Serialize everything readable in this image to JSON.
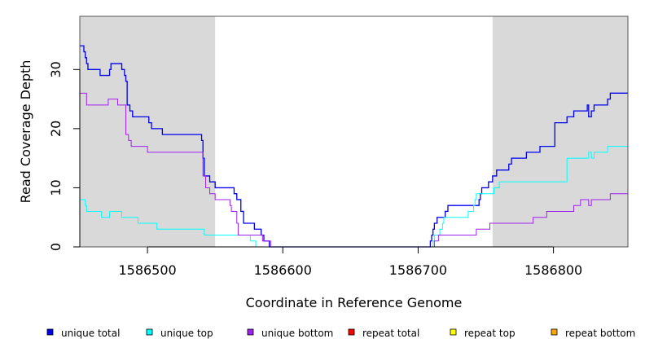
{
  "chart_data": {
    "type": "line",
    "xlabel": "Coordinate in Reference Genome",
    "ylabel": "Read Coverage Depth",
    "xlim": [
      1586450,
      1586855
    ],
    "ylim": [
      0,
      39
    ],
    "x_ticks": [
      1586500,
      1586600,
      1586700,
      1586800
    ],
    "x_tick_labels": [
      "1586500",
      "1586600",
      "1586700",
      "1586800"
    ],
    "y_ticks": [
      0,
      10,
      20,
      30
    ],
    "y_tick_labels": [
      "0",
      "10",
      "20",
      "30"
    ],
    "shaded_regions": [
      [
        1586450,
        1586550
      ],
      [
        1586755,
        1586855
      ]
    ],
    "shaded_color": "#d9d9d9",
    "grid": false,
    "legend_position": "bottom",
    "series": [
      {
        "name": "unique total",
        "color": "#0000ee",
        "points": [
          [
            1586450,
            34
          ],
          [
            1586453,
            33
          ],
          [
            1586454,
            32
          ],
          [
            1586455,
            31
          ],
          [
            1586456,
            30
          ],
          [
            1586465,
            29
          ],
          [
            1586472,
            30
          ],
          [
            1586473,
            31
          ],
          [
            1586478,
            31
          ],
          [
            1586481,
            30
          ],
          [
            1586483,
            29
          ],
          [
            1586484,
            28
          ],
          [
            1586485,
            24
          ],
          [
            1586487,
            23
          ],
          [
            1586489,
            22
          ],
          [
            1586501,
            21
          ],
          [
            1586503,
            20
          ],
          [
            1586511,
            19
          ],
          [
            1586539,
            19
          ],
          [
            1586540,
            18
          ],
          [
            1586541,
            15
          ],
          [
            1586542,
            12
          ],
          [
            1586546,
            11
          ],
          [
            1586550,
            10
          ],
          [
            1586564,
            9
          ],
          [
            1586566,
            8
          ],
          [
            1586569,
            6
          ],
          [
            1586571,
            4
          ],
          [
            1586579,
            3
          ],
          [
            1586584,
            2
          ],
          [
            1586586,
            1
          ],
          [
            1586590,
            0
          ],
          [
            1586708,
            0
          ],
          [
            1586709,
            1
          ],
          [
            1586710,
            2
          ],
          [
            1586711,
            3
          ],
          [
            1586712,
            4
          ],
          [
            1586714,
            5
          ],
          [
            1586720,
            6
          ],
          [
            1586722,
            7
          ],
          [
            1586740,
            7
          ],
          [
            1586745,
            8
          ],
          [
            1586746,
            9
          ],
          [
            1586747,
            10
          ],
          [
            1586752,
            11
          ],
          [
            1586755,
            12
          ],
          [
            1586758,
            13
          ],
          [
            1586767,
            14
          ],
          [
            1586769,
            15
          ],
          [
            1586780,
            16
          ],
          [
            1586790,
            17
          ],
          [
            1586801,
            21
          ],
          [
            1586810,
            22
          ],
          [
            1586815,
            23
          ],
          [
            1586825,
            24
          ],
          [
            1586826,
            22
          ],
          [
            1586828,
            23
          ],
          [
            1586830,
            24
          ],
          [
            1586840,
            25
          ],
          [
            1586842,
            26
          ],
          [
            1586855,
            26
          ]
        ]
      },
      {
        "name": "unique top",
        "color": "#00ffff",
        "points": [
          [
            1586450,
            8
          ],
          [
            1586454,
            7
          ],
          [
            1586455,
            6
          ],
          [
            1586466,
            5
          ],
          [
            1586472,
            6
          ],
          [
            1586481,
            5
          ],
          [
            1586491,
            5
          ],
          [
            1586493,
            4
          ],
          [
            1586507,
            3
          ],
          [
            1586541,
            3
          ],
          [
            1586542,
            2
          ],
          [
            1586569,
            2
          ],
          [
            1586576,
            1
          ],
          [
            1586580,
            0
          ],
          [
            1586709,
            0
          ],
          [
            1586711,
            1
          ],
          [
            1586712,
            2
          ],
          [
            1586716,
            3
          ],
          [
            1586718,
            4
          ],
          [
            1586719,
            5
          ],
          [
            1586737,
            6
          ],
          [
            1586741,
            7
          ],
          [
            1586742,
            8
          ],
          [
            1586743,
            9
          ],
          [
            1586756,
            10
          ],
          [
            1586760,
            11
          ],
          [
            1586770,
            11
          ],
          [
            1586810,
            15
          ],
          [
            1586826,
            16
          ],
          [
            1586828,
            15
          ],
          [
            1586830,
            16
          ],
          [
            1586840,
            17
          ],
          [
            1586855,
            17
          ]
        ]
      },
      {
        "name": "unique bottom",
        "color": "#a020f0",
        "points": [
          [
            1586450,
            26
          ],
          [
            1586455,
            24
          ],
          [
            1586471,
            25
          ],
          [
            1586478,
            24
          ],
          [
            1586483,
            24
          ],
          [
            1586484,
            19
          ],
          [
            1586486,
            18
          ],
          [
            1586488,
            17
          ],
          [
            1586500,
            16
          ],
          [
            1586540,
            16
          ],
          [
            1586541,
            12
          ],
          [
            1586543,
            10
          ],
          [
            1586546,
            9
          ],
          [
            1586550,
            8
          ],
          [
            1586560,
            8
          ],
          [
            1586561,
            7
          ],
          [
            1586562,
            6
          ],
          [
            1586566,
            4
          ],
          [
            1586567,
            2
          ],
          [
            1586585,
            1
          ],
          [
            1586591,
            0
          ],
          [
            1586710,
            0
          ],
          [
            1586712,
            1
          ],
          [
            1586715,
            2
          ],
          [
            1586740,
            2
          ],
          [
            1586743,
            3
          ],
          [
            1586753,
            4
          ],
          [
            1586775,
            4
          ],
          [
            1586785,
            5
          ],
          [
            1586795,
            6
          ],
          [
            1586815,
            7
          ],
          [
            1586820,
            8
          ],
          [
            1586826,
            7
          ],
          [
            1586828,
            8
          ],
          [
            1586840,
            8
          ],
          [
            1586842,
            9
          ],
          [
            1586855,
            9
          ]
        ]
      },
      {
        "name": "repeat total",
        "color": "#ff0000",
        "points": [
          [
            1586450,
            0
          ],
          [
            1586855,
            0
          ]
        ]
      },
      {
        "name": "repeat top",
        "color": "#ffff00",
        "points": [
          [
            1586450,
            0
          ],
          [
            1586855,
            0
          ]
        ]
      },
      {
        "name": "repeat bottom",
        "color": "#ffa500",
        "points": [
          [
            1586450,
            0
          ],
          [
            1586855,
            0
          ]
        ]
      }
    ]
  }
}
